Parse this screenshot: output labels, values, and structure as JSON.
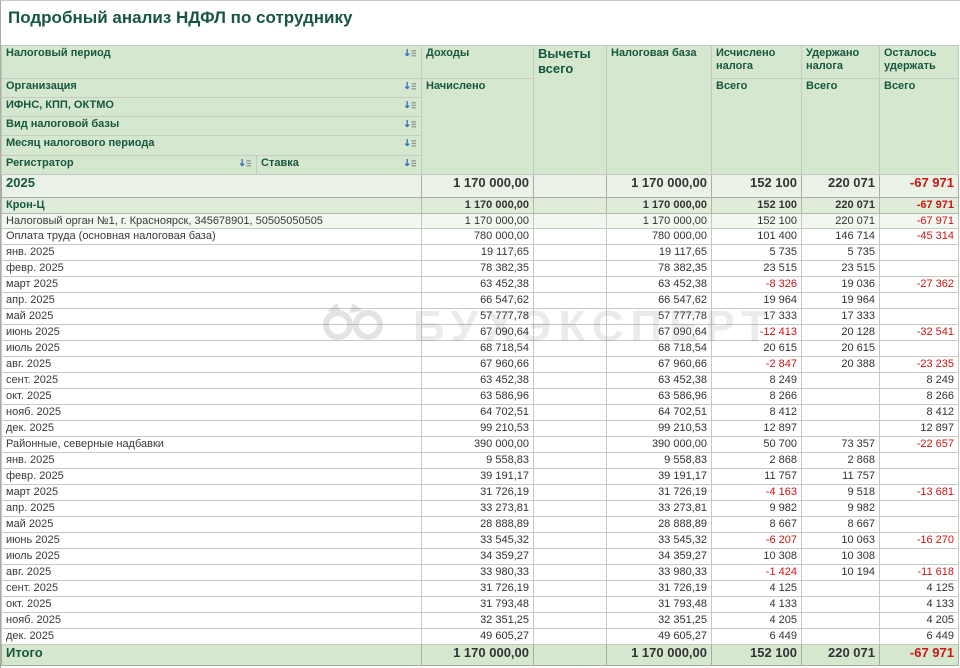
{
  "title": "Подробный анализ НДФЛ по сотруднику",
  "watermark": {
    "text": "БУХЭКСПЕРТ",
    "icon": "owl-logo"
  },
  "header": {
    "left": [
      "Налоговый период",
      "Организация",
      "ИФНС, КПП, ОКТМО",
      "Вид налоговой базы",
      "Месяц налогового периода"
    ],
    "registrator": "Регистратор",
    "stavka": "Ставка",
    "cols": {
      "dohody": "Доходы",
      "nachisleno": "Начислено",
      "vychety": "Вычеты всего",
      "baza": "Налоговая база",
      "ischisleno": "Исчислено налога",
      "uderzhano": "Удержано налога",
      "ostalos": "Осталось удержать",
      "vsego": "Всего"
    }
  },
  "colors": {
    "header_bg": "#d6e7d0",
    "year_row_bg": "#eaf2e6",
    "org_row_bg": "#dfecd9",
    "ifns_row_bg": "#f2f7ef",
    "total_row_bg": "#d6e7d0",
    "green_text": "#17573f",
    "negative_red": "#cf1414",
    "sort_icon_blue": "#3a6fc4"
  },
  "rows": [
    {
      "label": "2025",
      "level": 0,
      "style": "year",
      "values": [
        "1 170 000,00",
        "",
        "1 170 000,00",
        "152 100",
        "220 071",
        "-67 971"
      ]
    },
    {
      "label": "Крон-Ц",
      "level": 1,
      "style": "org",
      "values": [
        "1 170 000,00",
        "",
        "1 170 000,00",
        "152 100",
        "220 071",
        "-67 971"
      ]
    },
    {
      "label": "Налоговый орган №1, г. Красноярск, 345678901, 50505050505",
      "level": 2,
      "style": "ifns",
      "values": [
        "1 170 000,00",
        "",
        "1 170 000,00",
        "152 100",
        "220 071",
        "-67 971"
      ]
    },
    {
      "label": "Оплата труда (основная налоговая база)",
      "level": 3,
      "style": "base",
      "values": [
        "780 000,00",
        "",
        "780 000,00",
        "101 400",
        "146 714",
        "-45 314"
      ]
    },
    {
      "label": "янв. 2025",
      "level": 4,
      "style": "month",
      "values": [
        "19 117,65",
        "",
        "19 117,65",
        "5 735",
        "5 735",
        ""
      ]
    },
    {
      "label": "февр. 2025",
      "level": 4,
      "style": "month",
      "values": [
        "78 382,35",
        "",
        "78 382,35",
        "23 515",
        "23 515",
        ""
      ]
    },
    {
      "label": "март 2025",
      "level": 4,
      "style": "month",
      "values": [
        "63 452,38",
        "",
        "63 452,38",
        "-8 326",
        "19 036",
        "-27 362"
      ]
    },
    {
      "label": "апр. 2025",
      "level": 4,
      "style": "month",
      "values": [
        "66 547,62",
        "",
        "66 547,62",
        "19 964",
        "19 964",
        ""
      ]
    },
    {
      "label": "май 2025",
      "level": 4,
      "style": "month",
      "values": [
        "57 777,78",
        "",
        "57 777,78",
        "17 333",
        "17 333",
        ""
      ]
    },
    {
      "label": "июнь 2025",
      "level": 4,
      "style": "month",
      "values": [
        "67 090,64",
        "",
        "67 090,64",
        "-12 413",
        "20 128",
        "-32 541"
      ]
    },
    {
      "label": "июль 2025",
      "level": 4,
      "style": "month",
      "values": [
        "68 718,54",
        "",
        "68 718,54",
        "20 615",
        "20 615",
        ""
      ]
    },
    {
      "label": "авг. 2025",
      "level": 4,
      "style": "month",
      "values": [
        "67 960,66",
        "",
        "67 960,66",
        "-2 847",
        "20 388",
        "-23 235"
      ]
    },
    {
      "label": "сент. 2025",
      "level": 4,
      "style": "month",
      "values": [
        "63 452,38",
        "",
        "63 452,38",
        "8 249",
        "",
        "8 249"
      ]
    },
    {
      "label": "окт. 2025",
      "level": 4,
      "style": "month",
      "values": [
        "63 586,96",
        "",
        "63 586,96",
        "8 266",
        "",
        "8 266"
      ]
    },
    {
      "label": "нояб. 2025",
      "level": 4,
      "style": "month",
      "values": [
        "64 702,51",
        "",
        "64 702,51",
        "8 412",
        "",
        "8 412"
      ]
    },
    {
      "label": "дек. 2025",
      "level": 4,
      "style": "month",
      "values": [
        "99 210,53",
        "",
        "99 210,53",
        "12 897",
        "",
        "12 897"
      ]
    },
    {
      "label": "Районные, северные надбавки",
      "level": 3,
      "style": "base",
      "values": [
        "390 000,00",
        "",
        "390 000,00",
        "50 700",
        "73 357",
        "-22 657"
      ]
    },
    {
      "label": "янв. 2025",
      "level": 4,
      "style": "month",
      "values": [
        "9 558,83",
        "",
        "9 558,83",
        "2 868",
        "2 868",
        ""
      ]
    },
    {
      "label": "февр. 2025",
      "level": 4,
      "style": "month",
      "values": [
        "39 191,17",
        "",
        "39 191,17",
        "11 757",
        "11 757",
        ""
      ]
    },
    {
      "label": "март 2025",
      "level": 4,
      "style": "month",
      "values": [
        "31 726,19",
        "",
        "31 726,19",
        "-4 163",
        "9 518",
        "-13 681"
      ]
    },
    {
      "label": "апр. 2025",
      "level": 4,
      "style": "month",
      "values": [
        "33 273,81",
        "",
        "33 273,81",
        "9 982",
        "9 982",
        ""
      ]
    },
    {
      "label": "май 2025",
      "level": 4,
      "style": "month",
      "values": [
        "28 888,89",
        "",
        "28 888,89",
        "8 667",
        "8 667",
        ""
      ]
    },
    {
      "label": "июнь 2025",
      "level": 4,
      "style": "month",
      "values": [
        "33 545,32",
        "",
        "33 545,32",
        "-6 207",
        "10 063",
        "-16 270"
      ]
    },
    {
      "label": "июль 2025",
      "level": 4,
      "style": "month",
      "values": [
        "34 359,27",
        "",
        "34 359,27",
        "10 308",
        "10 308",
        ""
      ]
    },
    {
      "label": "авг. 2025",
      "level": 4,
      "style": "month",
      "values": [
        "33 980,33",
        "",
        "33 980,33",
        "-1 424",
        "10 194",
        "-11 618"
      ]
    },
    {
      "label": "сент. 2025",
      "level": 4,
      "style": "month",
      "values": [
        "31 726,19",
        "",
        "31 726,19",
        "4 125",
        "",
        "4 125"
      ]
    },
    {
      "label": "окт. 2025",
      "level": 4,
      "style": "month",
      "values": [
        "31 793,48",
        "",
        "31 793,48",
        "4 133",
        "",
        "4 133"
      ]
    },
    {
      "label": "нояб. 2025",
      "level": 4,
      "style": "month",
      "values": [
        "32 351,25",
        "",
        "32 351,25",
        "4 205",
        "",
        "4 205"
      ]
    },
    {
      "label": "дек. 2025",
      "level": 4,
      "style": "month",
      "values": [
        "49 605,27",
        "",
        "49 605,27",
        "6 449",
        "",
        "6 449"
      ]
    },
    {
      "label": "Итого",
      "level": 0,
      "style": "total",
      "values": [
        "1 170 000,00",
        "",
        "1 170 000,00",
        "152 100",
        "220 071",
        "-67 971"
      ]
    }
  ]
}
